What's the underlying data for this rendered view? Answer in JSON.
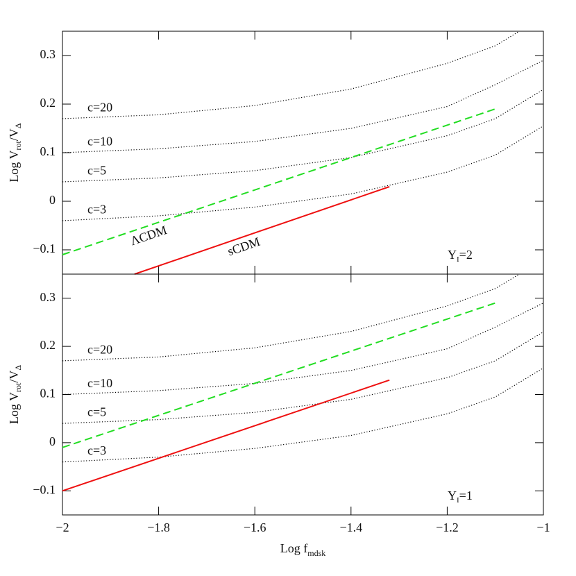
{
  "chart_data": [
    {
      "type": "line",
      "y_label": {
        "main": "Log V",
        "sub1": "rot",
        "mid": "/V",
        "sub2": "Δ"
      },
      "annotation": {
        "main": "Υ",
        "sub": "I",
        "rest": "=2"
      },
      "xlim": [
        -2,
        -1
      ],
      "xticks": [
        -2,
        -1.8,
        -1.6,
        -1.4,
        -1.2,
        -1
      ],
      "show_x_tick_labels": false,
      "ylim": [
        -0.15,
        0.35
      ],
      "yticks": [
        -0.1,
        0,
        0.1,
        0.2,
        0.3
      ],
      "series": [
        {
          "name": "c=20",
          "color": "#000000",
          "style": "dotted",
          "x": [
            -2,
            -1.8,
            -1.6,
            -1.4,
            -1.2,
            -1.1,
            -1.05
          ],
          "values": [
            0.17,
            0.178,
            0.197,
            0.231,
            0.284,
            0.32,
            0.35
          ]
        },
        {
          "name": "c=10",
          "color": "#000000",
          "style": "dotted",
          "x": [
            -2,
            -1.8,
            -1.6,
            -1.4,
            -1.2,
            -1.1,
            -1
          ],
          "values": [
            0.1,
            0.108,
            0.123,
            0.15,
            0.195,
            0.24,
            0.29
          ]
        },
        {
          "name": "c=5",
          "color": "#000000",
          "style": "dotted",
          "x": [
            -2,
            -1.8,
            -1.6,
            -1.4,
            -1.2,
            -1.1,
            -1
          ],
          "values": [
            0.04,
            0.048,
            0.063,
            0.09,
            0.135,
            0.17,
            0.23
          ]
        },
        {
          "name": "c=3",
          "color": "#000000",
          "style": "dotted",
          "x": [
            -2,
            -1.8,
            -1.6,
            -1.4,
            -1.2,
            -1.1,
            -1
          ],
          "values": [
            -0.04,
            -0.03,
            -0.012,
            0.015,
            0.06,
            0.095,
            0.155
          ]
        },
        {
          "name": "ΛCDM",
          "color": "#22dd22",
          "style": "dashed",
          "x": [
            -2,
            -1.1
          ],
          "values": [
            -0.11,
            0.19
          ]
        },
        {
          "name": "sCDM",
          "color": "#ee1111",
          "style": "solid",
          "x": [
            -1.85,
            -1.32
          ],
          "values": [
            -0.15,
            0.03
          ]
        }
      ]
    },
    {
      "type": "line",
      "x_label": {
        "main": "Log f",
        "sub": "mdsk"
      },
      "y_label": {
        "main": "Log V",
        "sub1": "rot",
        "mid": "/V",
        "sub2": "Δ"
      },
      "annotation": {
        "main": "Υ",
        "sub": "I",
        "rest": "=1"
      },
      "xlim": [
        -2,
        -1
      ],
      "xticks": [
        -2,
        -1.8,
        -1.6,
        -1.4,
        -1.2,
        -1
      ],
      "show_x_tick_labels": true,
      "ylim": [
        -0.15,
        0.35
      ],
      "yticks": [
        -0.1,
        0,
        0.1,
        0.2,
        0.3
      ],
      "series": [
        {
          "name": "c=20",
          "color": "#000000",
          "style": "dotted",
          "x": [
            -2,
            -1.8,
            -1.6,
            -1.4,
            -1.2,
            -1.1,
            -1.05
          ],
          "values": [
            0.17,
            0.178,
            0.197,
            0.231,
            0.284,
            0.32,
            0.35
          ]
        },
        {
          "name": "c=10",
          "color": "#000000",
          "style": "dotted",
          "x": [
            -2,
            -1.8,
            -1.6,
            -1.4,
            -1.2,
            -1.1,
            -1
          ],
          "values": [
            0.1,
            0.108,
            0.123,
            0.15,
            0.195,
            0.24,
            0.29
          ]
        },
        {
          "name": "c=5",
          "color": "#000000",
          "style": "dotted",
          "x": [
            -2,
            -1.8,
            -1.6,
            -1.4,
            -1.2,
            -1.1,
            -1
          ],
          "values": [
            0.04,
            0.048,
            0.063,
            0.09,
            0.135,
            0.17,
            0.23
          ]
        },
        {
          "name": "c=3",
          "color": "#000000",
          "style": "dotted",
          "x": [
            -2,
            -1.8,
            -1.6,
            -1.4,
            -1.2,
            -1.1,
            -1
          ],
          "values": [
            -0.04,
            -0.03,
            -0.012,
            0.015,
            0.06,
            0.095,
            0.155
          ]
        },
        {
          "color": "#22dd22",
          "style": "dashed",
          "x": [
            -2,
            -1.1
          ],
          "values": [
            -0.01,
            0.29
          ]
        },
        {
          "color": "#ee1111",
          "style": "solid",
          "x": [
            -2,
            -1.32
          ],
          "values": [
            -0.1,
            0.13
          ]
        }
      ]
    }
  ]
}
